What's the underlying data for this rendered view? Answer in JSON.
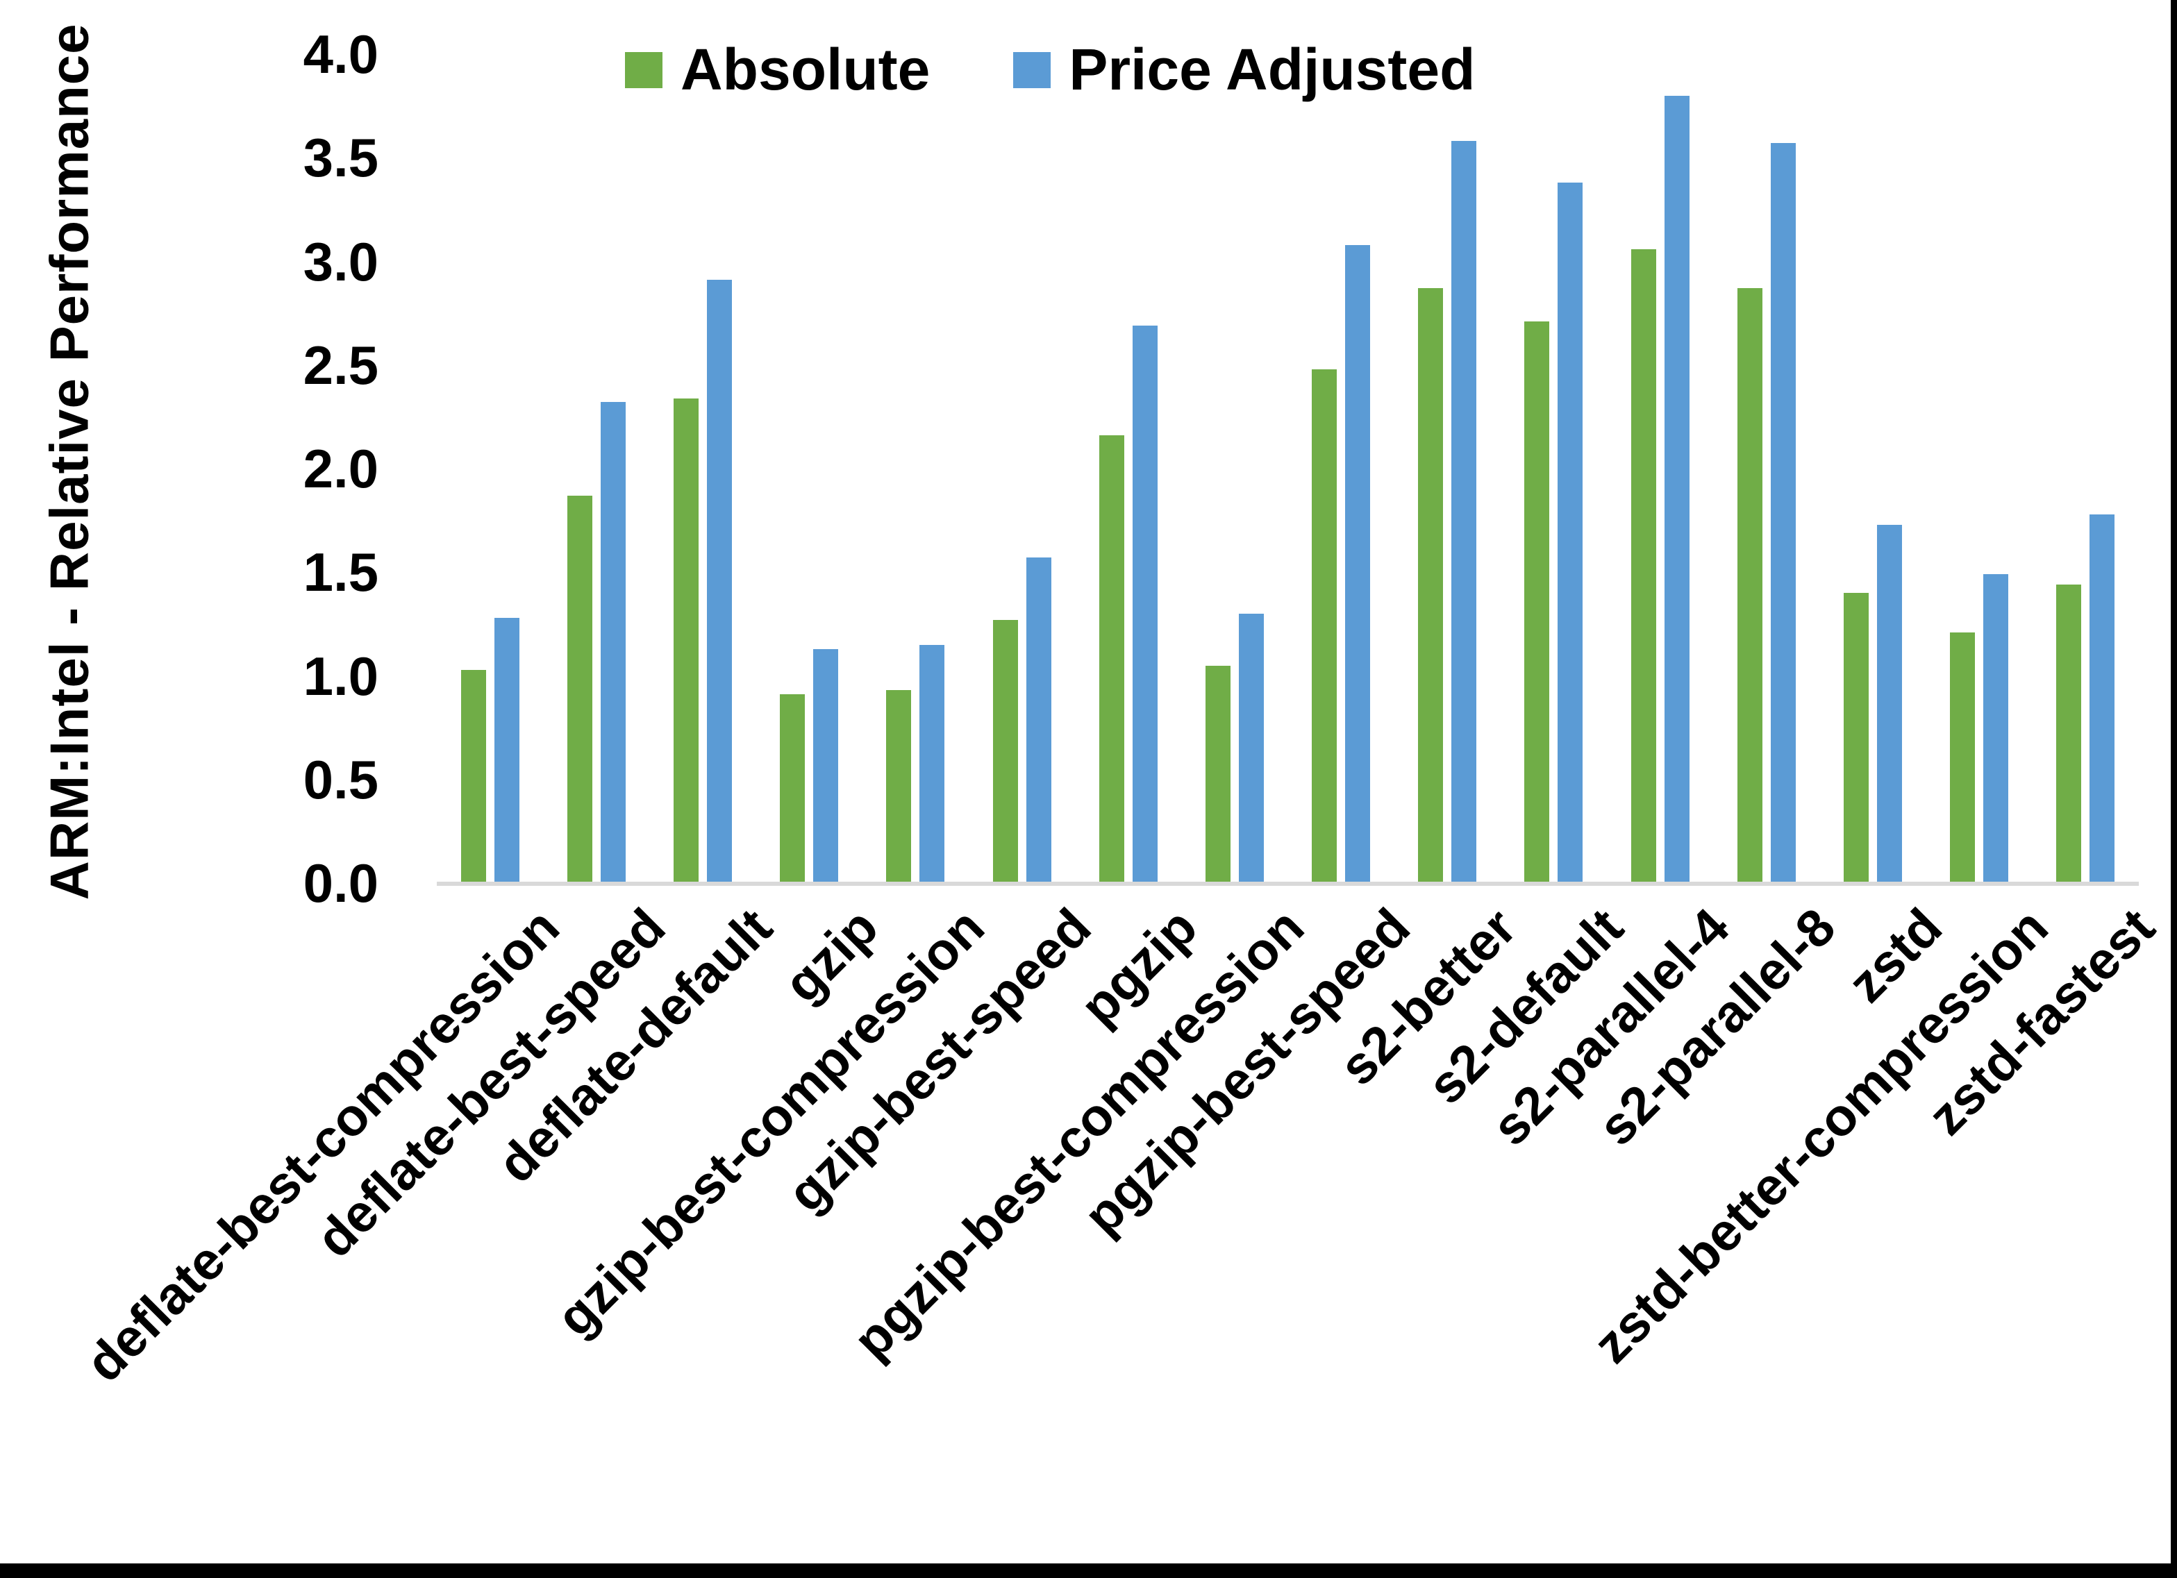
{
  "figure": {
    "background": "#ffffff",
    "y_axis_title": "ARM:Intel - Relative Performance"
  },
  "legend": {
    "position": "top-center",
    "items": [
      {
        "label": "Absolute",
        "color": "#70AD47"
      },
      {
        "label": "Price Adjusted",
        "color": "#5B9BD5"
      }
    ]
  },
  "chart_data": {
    "type": "bar",
    "title": "",
    "xlabel": "",
    "ylabel": "ARM:Intel - Relative Performance",
    "ylim": [
      0.0,
      4.0
    ],
    "ytick_step": 0.5,
    "ytick_labels": [
      "0.0",
      "0.5",
      "1.0",
      "1.5",
      "2.0",
      "2.5",
      "3.0",
      "3.5",
      "4.0"
    ],
    "grid": false,
    "legend_position": "top-center",
    "categories": [
      "deflate-best-compression",
      "deflate-best-speed",
      "deflate-default",
      "gzip",
      "gzip-best-compression",
      "gzip-best-speed",
      "pgzip",
      "pgzip-best-compression",
      "pgzip-best-speed",
      "s2-better",
      "s2-default",
      "s2-parallel-4",
      "s2-parallel-8",
      "zstd",
      "zstd-better-compression",
      "zstd-fastest"
    ],
    "series": [
      {
        "name": "Absolute",
        "color": "#70AD47",
        "values": [
          1.03,
          1.87,
          2.34,
          0.91,
          0.93,
          1.27,
          2.16,
          1.05,
          2.48,
          2.87,
          2.71,
          3.06,
          2.87,
          1.4,
          1.21,
          1.44
        ]
      },
      {
        "name": "Price Adjusted",
        "color": "#5B9BD5",
        "values": [
          1.28,
          2.32,
          2.91,
          1.13,
          1.15,
          1.57,
          2.69,
          1.3,
          3.08,
          3.58,
          3.38,
          3.8,
          3.57,
          1.73,
          1.49,
          1.78
        ]
      }
    ],
    "axis_line_color": "#d9d9d9"
  }
}
